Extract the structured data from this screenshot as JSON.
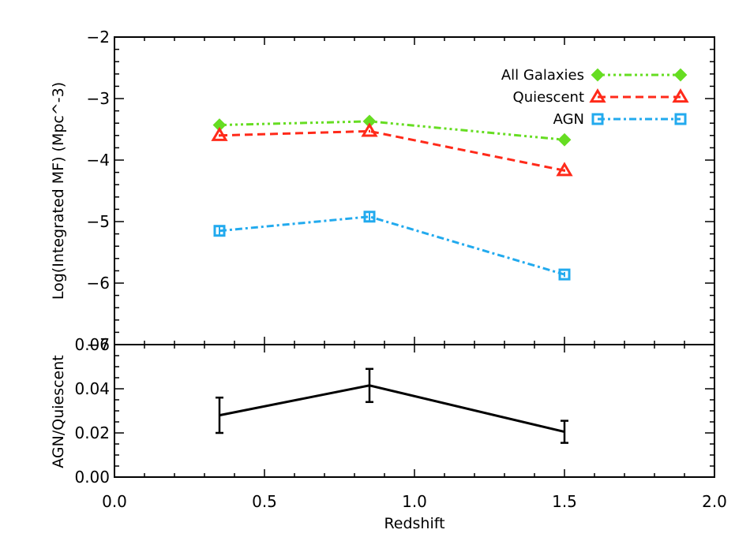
{
  "chart_data": [
    {
      "type": "line",
      "panel": "top",
      "ylabel": "Log(Integrated MF) (Mpc^-3)",
      "xlim": [
        0.0,
        2.0
      ],
      "ylim": [
        -7,
        -2
      ],
      "yticks": [
        -7,
        -6,
        -5,
        -4,
        -3,
        -2
      ],
      "ytick_labels": [
        "−7",
        "−6",
        "−5",
        "−4",
        "−3",
        "−2"
      ],
      "legend_placement": "top-right",
      "series": [
        {
          "name": "All Galaxies",
          "x": [
            0.35,
            0.85,
            1.5
          ],
          "y": [
            -3.43,
            -3.37,
            -3.67
          ],
          "yerr": [
            0.02,
            0.02,
            0.02
          ],
          "color": "#66dd22",
          "marker": "diamond",
          "dash": "9 4 3 4 3 4 3 4"
        },
        {
          "name": "Quiescent",
          "x": [
            0.35,
            0.85,
            1.5
          ],
          "y": [
            -3.6,
            -3.53,
            -4.17
          ],
          "yerr": [
            0.02,
            0.02,
            0.02
          ],
          "color": "#ff2a1a",
          "marker": "triangle",
          "dash": "10 6"
        },
        {
          "name": "AGN",
          "x": [
            0.35,
            0.85,
            1.5
          ],
          "y": [
            -5.15,
            -4.92,
            -5.86
          ],
          "yerr": [
            0.08,
            0.06,
            0.04
          ],
          "color": "#22aaee",
          "marker": "square",
          "dash": "9 4 3 4"
        }
      ]
    },
    {
      "type": "line",
      "panel": "bottom",
      "xlabel": "Redshift",
      "ylabel": "AGN/Quiescent",
      "xlim": [
        0.0,
        2.0
      ],
      "ylim": [
        0.0,
        0.06
      ],
      "xticks": [
        0.0,
        0.5,
        1.0,
        1.5,
        2.0
      ],
      "xtick_labels": [
        "0.0",
        "0.5",
        "1.0",
        "1.5",
        "2.0"
      ],
      "yticks": [
        0.0,
        0.02,
        0.04,
        0.06
      ],
      "ytick_labels": [
        "0.00",
        "0.02",
        "0.04",
        "0.06"
      ],
      "series": [
        {
          "x": [
            0.35,
            0.85,
            1.5
          ],
          "y": [
            0.028,
            0.0415,
            0.0205
          ],
          "yerr": [
            0.008,
            0.0075,
            0.005
          ],
          "color": "#000000"
        }
      ]
    }
  ]
}
